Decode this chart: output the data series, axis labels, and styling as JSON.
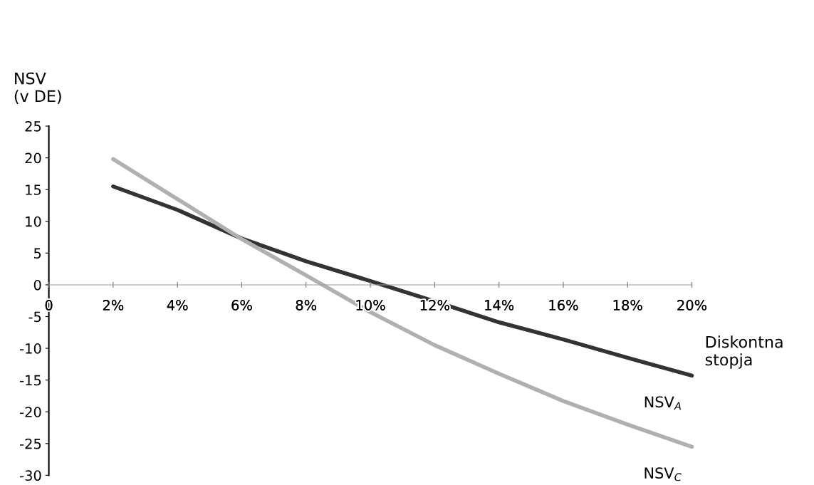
{
  "chart_data": {
    "type": "line",
    "ylabel": "NSV\n(v DE)",
    "xlabel": "Diskontna\nstopja",
    "x": [
      2,
      4,
      6,
      8,
      10,
      12,
      14,
      16,
      18,
      20
    ],
    "series": [
      {
        "name": "NSV$_{A}$",
        "color": "#333333",
        "values": [
          15.5,
          11.8,
          7.3,
          3.7,
          0.6,
          -2.6,
          -5.9,
          -8.6,
          -11.5,
          -14.3
        ]
      },
      {
        "name": "NSV$_{C}$",
        "color": "#b0b0b0",
        "values": [
          19.8,
          13.5,
          7.2,
          1.5,
          -4.3,
          -9.5,
          -14,
          -18.3,
          -22,
          -25.5
        ]
      }
    ],
    "xlim": [
      0,
      20
    ],
    "xticks": [
      {
        "value": 0,
        "label": "0"
      },
      {
        "value": 2,
        "label": "2%"
      },
      {
        "value": 4,
        "label": "4%"
      },
      {
        "value": 6,
        "label": "6%"
      },
      {
        "value": 8,
        "label": "8%"
      },
      {
        "value": 10,
        "label": "10%"
      },
      {
        "value": 12,
        "label": "12%"
      },
      {
        "value": 14,
        "label": "14%"
      },
      {
        "value": 16,
        "label": "16%"
      },
      {
        "value": 18,
        "label": "18%"
      },
      {
        "value": 20,
        "label": "20%"
      }
    ],
    "ylim": [
      -30,
      25
    ],
    "yticks": [
      -30,
      -25,
      -20,
      -15,
      -10,
      -5,
      0,
      5,
      10,
      15,
      20,
      25
    ],
    "grid": false,
    "legend": false,
    "marker": "none",
    "line_style": "solid"
  }
}
